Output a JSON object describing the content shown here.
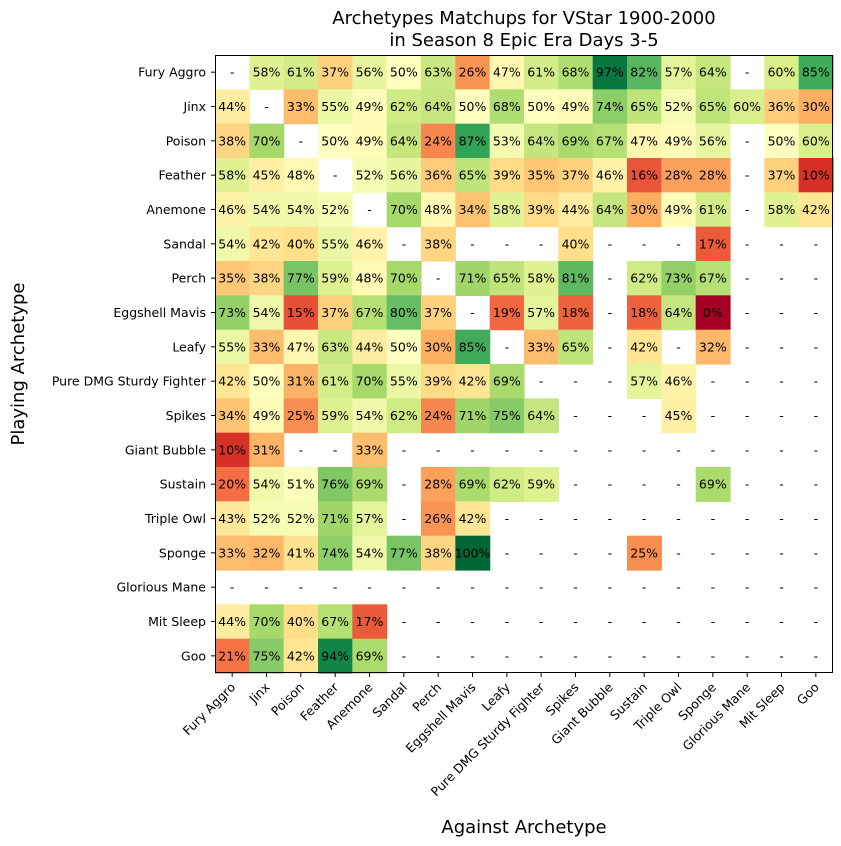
{
  "chart_data": {
    "type": "heatmap",
    "title_lines": [
      "Archetypes Matchups for VStar 1900-2000",
      "in Season 8 Epic Era Days 3-5"
    ],
    "xlabel": "Against Archetype",
    "ylabel": "Playing Archetype",
    "rows": [
      "Fury Aggro",
      "Jinx",
      "Poison",
      "Feather",
      "Anemone",
      "Sandal",
      "Perch",
      "Eggshell Mavis",
      "Leafy",
      "Pure DMG Sturdy Fighter",
      "Spikes",
      "Giant Bubble",
      "Sustain",
      "Triple Owl",
      "Sponge",
      "Glorious Mane",
      "Mit Sleep",
      "Goo"
    ],
    "columns": [
      "Fury Aggro",
      "Jinx",
      "Poison",
      "Feather",
      "Anemone",
      "Sandal",
      "Perch",
      "Eggshell Mavis",
      "Leafy",
      "Pure DMG Sturdy Fighter",
      "Spikes",
      "Giant Bubble",
      "Sustain",
      "Triple Owl",
      "Sponge",
      "Glorious Mane",
      "Mit Sleep",
      "Goo"
    ],
    "colormap": "RdYlGn",
    "value_range": [
      0,
      100
    ],
    "cells": [
      [
        "-",
        "58%",
        "61%",
        "37%",
        "56%",
        "50%",
        "63%",
        "26%",
        "47%",
        "61%",
        "68%",
        "97%",
        "82%",
        "57%",
        "64%",
        "-",
        "60%",
        "85%"
      ],
      [
        "44%",
        "-",
        "33%",
        "55%",
        "49%",
        "62%",
        "64%",
        "50%",
        "68%",
        "50%",
        "49%",
        "74%",
        "65%",
        "52%",
        "65%",
        "60%",
        "36%",
        "30%"
      ],
      [
        "38%",
        "70%",
        "-",
        "50%",
        "49%",
        "64%",
        "24%",
        "87%",
        "53%",
        "64%",
        "69%",
        "67%",
        "47%",
        "49%",
        "56%",
        "-",
        "50%",
        "60%"
      ],
      [
        "58%",
        "45%",
        "48%",
        "-",
        "52%",
        "56%",
        "36%",
        "65%",
        "39%",
        "35%",
        "37%",
        "46%",
        "16%",
        "28%",
        "28%",
        "-",
        "37%",
        "10%"
      ],
      [
        "46%",
        "54%",
        "54%",
        "52%",
        "-",
        "70%",
        "48%",
        "34%",
        "58%",
        "39%",
        "44%",
        "64%",
        "30%",
        "49%",
        "61%",
        "-",
        "58%",
        "42%"
      ],
      [
        "54%",
        "42%",
        "40%",
        "55%",
        "46%",
        "-",
        "38%",
        "-",
        "-",
        "-",
        "40%",
        "-",
        "-",
        "-",
        "17%",
        "-",
        "-",
        "-"
      ],
      [
        "35%",
        "38%",
        "77%",
        "59%",
        "48%",
        "70%",
        "-",
        "71%",
        "65%",
        "58%",
        "81%",
        "-",
        "62%",
        "73%",
        "67%",
        "-",
        "-",
        "-"
      ],
      [
        "73%",
        "54%",
        "15%",
        "37%",
        "67%",
        "80%",
        "37%",
        "-",
        "19%",
        "57%",
        "18%",
        "-",
        "18%",
        "64%",
        "0%",
        "-",
        "-",
        "-"
      ],
      [
        "55%",
        "33%",
        "47%",
        "63%",
        "44%",
        "50%",
        "30%",
        "85%",
        "-",
        "33%",
        "65%",
        "-",
        "42%",
        "-",
        "32%",
        "-",
        "-",
        "-"
      ],
      [
        "42%",
        "50%",
        "31%",
        "61%",
        "70%",
        "55%",
        "39%",
        "42%",
        "69%",
        "-",
        "-",
        "-",
        "57%",
        "46%",
        "-",
        "-",
        "-",
        "-"
      ],
      [
        "34%",
        "49%",
        "25%",
        "59%",
        "54%",
        "62%",
        "24%",
        "71%",
        "75%",
        "64%",
        "-",
        "-",
        "-",
        "45%",
        "-",
        "-",
        "-",
        "-"
      ],
      [
        "10%",
        "31%",
        "-",
        "-",
        "33%",
        "-",
        "-",
        "-",
        "-",
        "-",
        "-",
        "-",
        "-",
        "-",
        "-",
        "-",
        "-",
        "-"
      ],
      [
        "20%",
        "54%",
        "51%",
        "76%",
        "69%",
        "-",
        "28%",
        "69%",
        "62%",
        "59%",
        "-",
        "-",
        "-",
        "-",
        "69%",
        "-",
        "-",
        "-"
      ],
      [
        "43%",
        "52%",
        "52%",
        "71%",
        "57%",
        "-",
        "26%",
        "42%",
        "-",
        "-",
        "-",
        "-",
        "-",
        "-",
        "-",
        "-",
        "-",
        "-"
      ],
      [
        "33%",
        "32%",
        "41%",
        "74%",
        "54%",
        "77%",
        "38%",
        "100%",
        "-",
        "-",
        "-",
        "-",
        "25%",
        "-",
        "-",
        "-",
        "-",
        "-"
      ],
      [
        "-",
        "-",
        "-",
        "-",
        "-",
        "-",
        "-",
        "-",
        "-",
        "-",
        "-",
        "-",
        "-",
        "-",
        "-",
        "-",
        "-",
        "-"
      ],
      [
        "44%",
        "70%",
        "40%",
        "67%",
        "17%",
        "-",
        "-",
        "-",
        "-",
        "-",
        "-",
        "-",
        "-",
        "-",
        "-",
        "-",
        "-",
        "-"
      ],
      [
        "21%",
        "75%",
        "42%",
        "94%",
        "69%",
        "-",
        "-",
        "-",
        "-",
        "-",
        "-",
        "-",
        "-",
        "-",
        "-",
        "-",
        "-",
        "-"
      ]
    ]
  }
}
